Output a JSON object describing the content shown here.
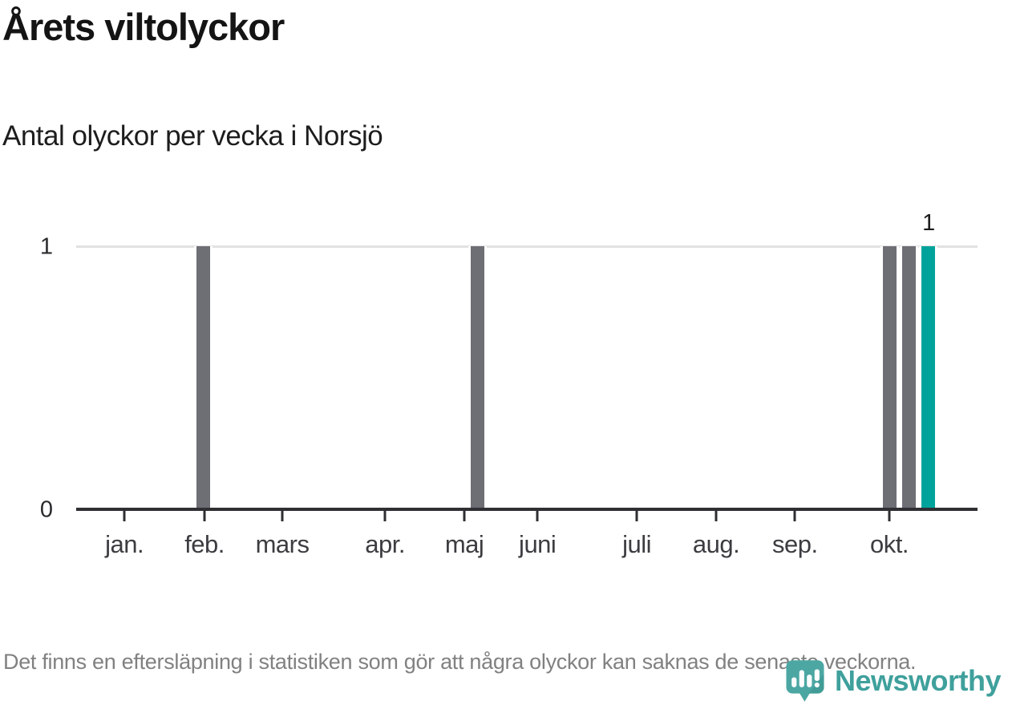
{
  "header": {
    "title": "Årets viltolyckor",
    "subtitle": "Antal olyckor per vecka i Norsjö"
  },
  "chart_data": {
    "type": "bar",
    "title": "Årets viltolyckor",
    "subtitle": "Antal olyckor per vecka i Norsjö",
    "xlabel": "",
    "ylabel": "Antal olyckor per vecka",
    "ylim": [
      0,
      1
    ],
    "y_ticks": [
      "0",
      "1"
    ],
    "grid": "horizontal-at-1",
    "x_domain_weeks": 46,
    "all_other_weeks_value": 0,
    "bars": [
      {
        "week": 7,
        "value": 1,
        "color": "default"
      },
      {
        "week": 21,
        "value": 1,
        "color": "default"
      },
      {
        "week": 42,
        "value": 1,
        "color": "default"
      },
      {
        "week": 43,
        "value": 1,
        "color": "default"
      },
      {
        "week": 44,
        "value": 1,
        "color": "highlight",
        "label": "1"
      }
    ],
    "month_ticks": [
      {
        "label": "jan.",
        "week": 2.46
      },
      {
        "label": "feb.",
        "week": 6.55
      },
      {
        "label": "mars",
        "week": 10.52
      },
      {
        "label": "apr.",
        "week": 15.76
      },
      {
        "label": "maj",
        "week": 19.81
      },
      {
        "label": "juni",
        "week": 23.54
      },
      {
        "label": "juli",
        "week": 28.61
      },
      {
        "label": "aug.",
        "week": 32.66
      },
      {
        "label": "sep.",
        "week": 36.68
      },
      {
        "label": "okt.",
        "week": 41.5
      }
    ],
    "colors": {
      "default": "#6e6e75",
      "highlight": "#00a39b",
      "gridline": "#e2e2e2",
      "axis": "#2f2f33"
    }
  },
  "footer": {
    "note": "Det finns en eftersläpning i statistiken som gör att några olyckor kan saknas de senaste veckorna."
  },
  "branding": {
    "logo_text": "Newsworthy",
    "logo_color": "#3fa09c",
    "icon_color": "#4ca7a3",
    "icon_shade_color": "#3a9490"
  }
}
